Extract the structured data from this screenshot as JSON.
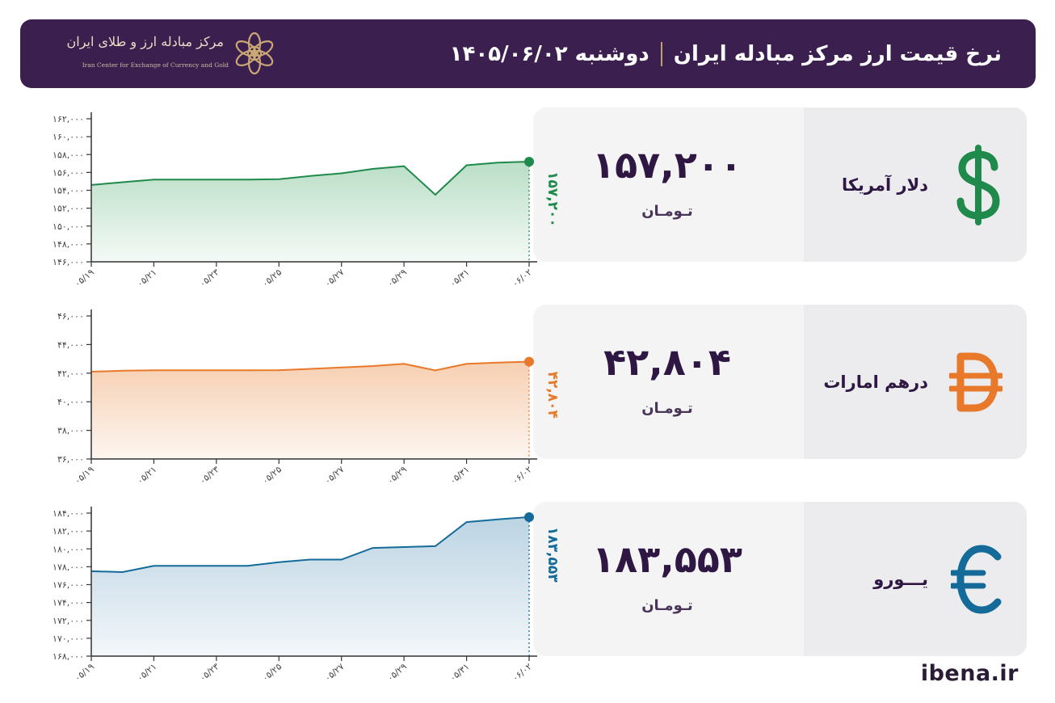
{
  "header": {
    "title": "نرخ قیمت ارز مرکز مبادله ایران",
    "date": "دوشنبه ۱۴۰۵/۰۶/۰۲",
    "logo_name": "مرکز مبادله ارز و طلای ایران",
    "logo_en": "Iran Center for Exchange of Currency and Gold",
    "background": "#3b1f4f"
  },
  "cards": [
    {
      "name": "دلار آمریکا",
      "price": "۱۵۷,۲۰۰",
      "unit": "تـومـان",
      "icon": "dollar-icon",
      "color": "#1f8a4c"
    },
    {
      "name": "درهم امارات",
      "price": "۴۲,۸۰۴",
      "unit": "تـومـان",
      "icon": "dirham-icon",
      "color": "#e8792a"
    },
    {
      "name": "یـــورو",
      "price": "۱۸۳,۵۵۳",
      "unit": "تـومـان",
      "icon": "euro-icon",
      "color": "#146b9a"
    }
  ],
  "chart_data": [
    {
      "type": "area",
      "x": [
        "05/19",
        "05/20",
        "05/21",
        "05/22",
        "05/23",
        "05/24",
        "05/25",
        "05/26",
        "05/27",
        "05/28",
        "05/29",
        "05/30",
        "05/31",
        "06/01",
        "06/02"
      ],
      "x_tick_labels": [
        "۰۵/۱۹",
        "۰۵/۲۱",
        "۰۵/۲۳",
        "۰۵/۲۵",
        "۰۵/۲۷",
        "۰۵/۲۹",
        "۰۵/۳۱",
        "۰۶/۰۲"
      ],
      "values": [
        154600,
        154900,
        155200,
        155200,
        155200,
        155200,
        155250,
        155600,
        155900,
        156400,
        156700,
        153500,
        156800,
        157100,
        157200
      ],
      "ylim": [
        146000,
        162000
      ],
      "y_ticks": [
        146000,
        148000,
        150000,
        152000,
        154000,
        156000,
        158000,
        160000,
        162000
      ],
      "y_tick_labels": [
        "۱۴۶,۰۰۰",
        "۱۴۸,۰۰۰",
        "۱۵۰,۰۰۰",
        "۱۵۲,۰۰۰",
        "۱۵۴,۰۰۰",
        "۱۵۶,۰۰۰",
        "۱۵۸,۰۰۰",
        "۱۶۰,۰۰۰",
        "۱۶۲,۰۰۰"
      ],
      "last_label": "۱۵۷,۲۰۰",
      "color": "#1f8a4c",
      "fill_top": "#b9dec6",
      "fill_bottom": "#f4faf6"
    },
    {
      "type": "area",
      "x": [
        "05/19",
        "05/20",
        "05/21",
        "05/22",
        "05/23",
        "05/24",
        "05/25",
        "05/26",
        "05/27",
        "05/28",
        "05/29",
        "05/30",
        "05/31",
        "06/01",
        "06/02"
      ],
      "x_tick_labels": [
        "۰۵/۱۹",
        "۰۵/۲۱",
        "۰۵/۲۳",
        "۰۵/۲۵",
        "۰۵/۲۷",
        "۰۵/۲۹",
        "۰۵/۳۱",
        "۰۶/۰۲"
      ],
      "values": [
        42100,
        42170,
        42200,
        42200,
        42200,
        42200,
        42210,
        42300,
        42400,
        42500,
        42650,
        42200,
        42650,
        42740,
        42804
      ],
      "ylim": [
        36000,
        46000
      ],
      "y_ticks": [
        36000,
        38000,
        40000,
        42000,
        44000,
        46000
      ],
      "y_tick_labels": [
        "۳۶,۰۰۰",
        "۳۸,۰۰۰",
        "۴۰,۰۰۰",
        "۴۲,۰۰۰",
        "۴۴,۰۰۰",
        "۴۶,۰۰۰"
      ],
      "last_label": "۴۲,۸۰۴",
      "color": "#e8792a",
      "fill_top": "#f6cfb1",
      "fill_bottom": "#fdf6f0"
    },
    {
      "type": "area",
      "x": [
        "05/19",
        "05/20",
        "05/21",
        "05/22",
        "05/23",
        "05/24",
        "05/25",
        "05/26",
        "05/27",
        "05/28",
        "05/29",
        "05/30",
        "05/31",
        "06/01",
        "06/02"
      ],
      "x_tick_labels": [
        "۰۵/۱۹",
        "۰۵/۲۱",
        "۰۵/۲۳",
        "۰۵/۲۵",
        "۰۵/۲۷",
        "۰۵/۲۹",
        "۰۵/۳۱",
        "۰۶/۰۲"
      ],
      "values": [
        177500,
        177400,
        178100,
        178100,
        178100,
        178100,
        178500,
        178800,
        178800,
        180100,
        180200,
        180300,
        183000,
        183300,
        183553
      ],
      "ylim": [
        168000,
        184000
      ],
      "y_ticks": [
        168000,
        170000,
        172000,
        174000,
        176000,
        178000,
        180000,
        182000,
        184000
      ],
      "y_tick_labels": [
        "۱۶۸,۰۰۰",
        "۱۷۰,۰۰۰",
        "۱۷۲,۰۰۰",
        "۱۷۴,۰۰۰",
        "۱۷۶,۰۰۰",
        "۱۷۸,۰۰۰",
        "۱۸۰,۰۰۰",
        "۱۸۲,۰۰۰",
        "۱۸۴,۰۰۰"
      ],
      "last_label": "۱۸۳,۵۵۳",
      "color": "#146b9a",
      "fill_top": "#bcd4e3",
      "fill_bottom": "#f3f7fa"
    }
  ],
  "footer": {
    "site": "ibena.ir"
  }
}
